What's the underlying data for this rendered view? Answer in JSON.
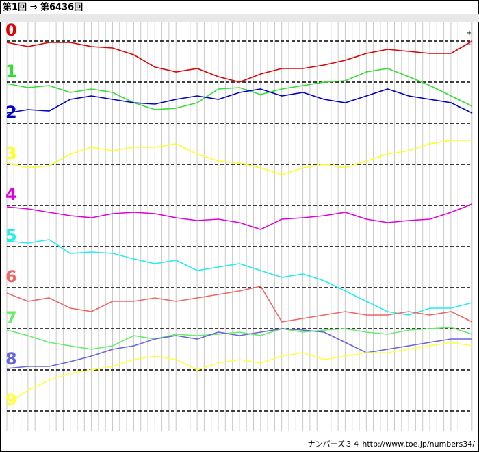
{
  "chart_data": {
    "type": "line",
    "title": "第1回 ⇒ 第6436回",
    "footer": "ナンバーズ３４ http://www.toe.jp/numbers34/",
    "annotations": [
      "+",
      "-"
    ],
    "series": [
      {
        "name": "0",
        "color": "#e00000",
        "values": [
          -2,
          -8,
          -2,
          -2,
          -8,
          -10,
          -20,
          -38,
          -45,
          -40,
          -52,
          -60,
          -48,
          -40,
          -40,
          -35,
          -28,
          -18,
          -12,
          -15,
          -18,
          -18,
          0
        ]
      },
      {
        "name": "1",
        "color": "#33dd33",
        "values": [
          -2,
          -8,
          -5,
          -15,
          -10,
          -15,
          -30,
          -40,
          -38,
          -30,
          -10,
          -8,
          -18,
          -10,
          -5,
          0,
          2,
          15,
          20,
          8,
          -5,
          -20,
          -35
        ]
      },
      {
        "name": "2",
        "color": "#0000cc",
        "values": [
          15,
          20,
          18,
          35,
          40,
          35,
          30,
          28,
          35,
          40,
          35,
          45,
          50,
          40,
          45,
          35,
          30,
          40,
          50,
          40,
          35,
          30,
          15
        ]
      },
      {
        "name": "3",
        "color": "#ffff22",
        "values": [
          2,
          -5,
          -2,
          15,
          25,
          20,
          25,
          25,
          30,
          15,
          5,
          2,
          -5,
          -15,
          -5,
          0,
          -5,
          5,
          15,
          20,
          30,
          35,
          35
        ]
      },
      {
        "name": "4",
        "color": "#dd00dd",
        "values": [
          -2,
          -5,
          -10,
          -15,
          -18,
          -12,
          -10,
          -12,
          -18,
          -22,
          -20,
          -25,
          -35,
          -20,
          -18,
          -15,
          -10,
          -20,
          -25,
          -22,
          -20,
          -10,
          2
        ]
      },
      {
        "name": "5",
        "color": "#22eeee",
        "values": [
          8,
          5,
          10,
          -10,
          -8,
          -10,
          -18,
          -25,
          -20,
          -35,
          -30,
          -25,
          -35,
          -45,
          -40,
          -50,
          -65,
          -80,
          -95,
          -100,
          -90,
          -90,
          -82
        ]
      },
      {
        "name": "6",
        "color": "#ee6666",
        "values": [
          -8,
          -20,
          -15,
          -30,
          -35,
          -20,
          -20,
          -15,
          -20,
          -15,
          -10,
          -5,
          2,
          -50,
          -45,
          -40,
          -35,
          -40,
          -40,
          -35,
          -40,
          -35,
          -50
        ]
      },
      {
        "name": "7",
        "color": "#66ee66",
        "values": [
          -2,
          -10,
          -20,
          -25,
          -30,
          -25,
          -10,
          -15,
          -8,
          -10,
          -8,
          -5,
          -10,
          0,
          -5,
          -2,
          0,
          -5,
          -8,
          -2,
          0,
          2,
          -8
        ]
      },
      {
        "name": "8",
        "color": "#6666dd",
        "values": [
          2,
          5,
          5,
          12,
          20,
          30,
          35,
          45,
          50,
          45,
          55,
          50,
          55,
          60,
          58,
          55,
          40,
          25,
          30,
          35,
          40,
          45,
          45
        ]
      },
      {
        "name": "9",
        "color": "#ffff44",
        "values": [
          10,
          30,
          45,
          55,
          60,
          65,
          75,
          80,
          75,
          60,
          70,
          75,
          70,
          80,
          85,
          75,
          80,
          85,
          85,
          90,
          95,
          100,
          95
        ]
      }
    ]
  }
}
